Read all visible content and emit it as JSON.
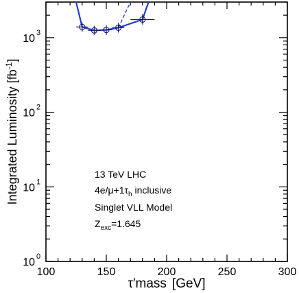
{
  "chart_data": {
    "type": "line",
    "xlabel_main": "τ′mass",
    "xlabel_unit": "[GeV]",
    "ylabel_main": "Integrated Luminosity [fb",
    "ylabel_sup": "-1",
    "ylabel_close": "]",
    "xlim": [
      100,
      300
    ],
    "ylim": [
      1,
      3000
    ],
    "yscale": "log",
    "x_ticks": [
      {
        "value": 100,
        "label": "100"
      },
      {
        "value": 150,
        "label": "150"
      },
      {
        "value": 200,
        "label": "200"
      },
      {
        "value": 250,
        "label": "250"
      },
      {
        "value": 300,
        "label": "300"
      }
    ],
    "y_ticks": [
      {
        "value": 1,
        "base": "10",
        "exp": "0"
      },
      {
        "value": 10,
        "base": "10",
        "exp": "1"
      },
      {
        "value": 100,
        "base": "10",
        "exp": "2"
      },
      {
        "value": 1000,
        "base": "10",
        "exp": "3"
      }
    ],
    "series": [
      {
        "style": "solid",
        "color": "#1f3fd0",
        "x": [
          125,
          130,
          140,
          150,
          160,
          180,
          185
        ],
        "y": [
          3000,
          1390,
          1250,
          1270,
          1360,
          1750,
          3000
        ]
      },
      {
        "style": "dashed",
        "color": "#1f3fd0",
        "x": [
          160,
          170
        ],
        "y": [
          1360,
          3000
        ]
      }
    ],
    "points": [
      {
        "x": 130,
        "y": 1390,
        "xerr": 5,
        "ylow": 1200,
        "yhigh": 1600
      },
      {
        "x": 140,
        "y": 1250,
        "xerr": 5,
        "ylow": 1090,
        "yhigh": 1440
      },
      {
        "x": 150,
        "y": 1270,
        "xerr": 5,
        "ylow": 1090,
        "yhigh": 1470
      },
      {
        "x": 160,
        "y": 1360,
        "xerr": 5,
        "ylow": 1170,
        "yhigh": 1580
      },
      {
        "x": 180,
        "y": 1750,
        "xerr": 10,
        "ylow": 1500,
        "yhigh": 2060
      }
    ],
    "annotations": {
      "line1": "13 TeV LHC",
      "line2_pre": "4e/μ+1τ",
      "line2_sub": "h",
      "line2_post": " inclusive",
      "line3": "Singlet VLL Model",
      "line4_pre": "Z",
      "line4_sub": "exc",
      "line4_post": "=1.645"
    },
    "grid": false,
    "legend": "none"
  }
}
